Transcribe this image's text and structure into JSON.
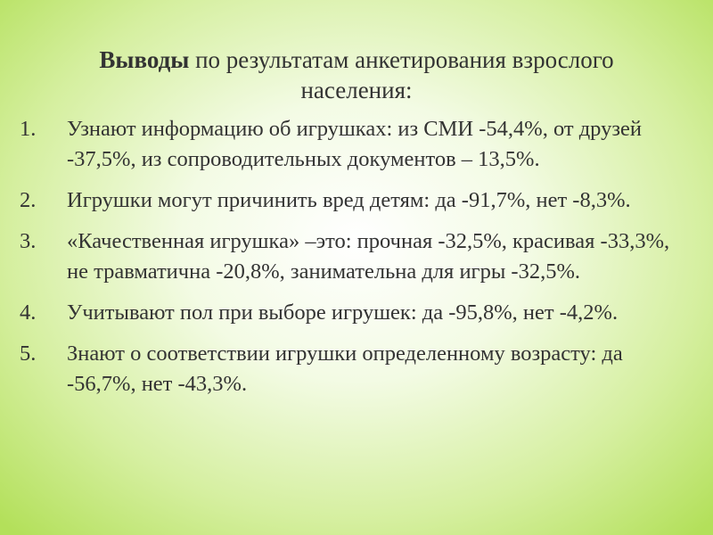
{
  "header": {
    "title_bold": "Выводы",
    "title_rest": " по результатам анкетирования взрослого населения:"
  },
  "items": [
    {
      "marker": "1.",
      "text": "Узнают информацию об игрушках: из СМИ -54,4%, от друзей -37,5%, из сопроводительных документов – 13,5%."
    },
    {
      "marker": "2.",
      "text": "Игрушки могут причинить вред детям: да -91,7%, нет -8,3%."
    },
    {
      "marker": "3.",
      "text": "«Качественная игрушка» –это: прочная -32,5%, красивая -33,3%, не травматична -20,8%, занимательна для игры -32,5%."
    },
    {
      "marker": "4.",
      "text": "Учитывают пол при выборе игрушек: да -95,8%, нет -4,2%."
    },
    {
      "marker": "5.",
      "text": "Знают о соответствии игрушки определенному возрасту: да -56,7%, нет -43,3%."
    }
  ]
}
